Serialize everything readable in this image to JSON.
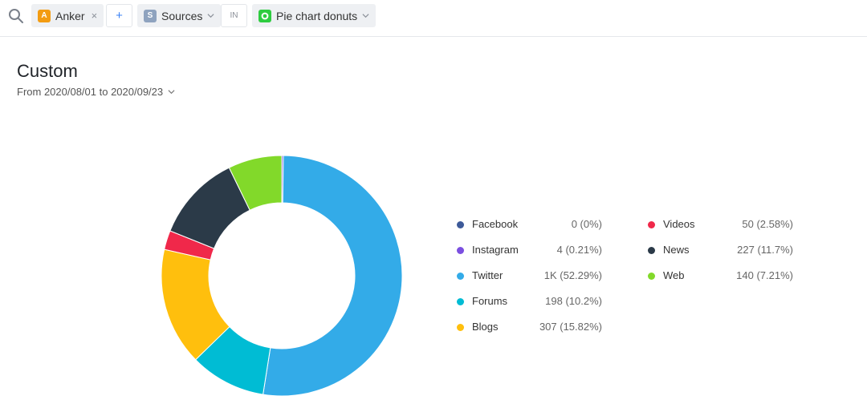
{
  "toolbar": {
    "search_icon": "search-icon",
    "brand_chip": {
      "badge": "A",
      "label": "Anker",
      "badge_color": "#f39c12"
    },
    "add_label": "+",
    "sources_chip": {
      "badge": "S",
      "label": "Sources",
      "badge_color": "#8fa3bf"
    },
    "operator_label": "IN",
    "type_chip": {
      "label": "Pie chart donuts",
      "badge_color": "#2ecc40"
    }
  },
  "page": {
    "title": "Custom",
    "date_range": "From 2020/08/01 to 2020/09/23"
  },
  "chart_data": {
    "type": "pie",
    "donut": true,
    "series": [
      {
        "name": "Facebook",
        "value": 0,
        "value_label": "0 (0%)",
        "percent": 0.0,
        "color": "#3d5a99"
      },
      {
        "name": "Instagram",
        "value": 4,
        "value_label": "4 (0.21%)",
        "percent": 0.21,
        "color": "#7b4fe0"
      },
      {
        "name": "Twitter",
        "value": 1000,
        "value_label": "1K (52.29%)",
        "percent": 52.29,
        "color": "#33abe8"
      },
      {
        "name": "Forums",
        "value": 198,
        "value_label": "198 (10.2%)",
        "percent": 10.2,
        "color": "#00bcd4"
      },
      {
        "name": "Blogs",
        "value": 307,
        "value_label": "307 (15.82%)",
        "percent": 15.82,
        "color": "#ffbf0d"
      },
      {
        "name": "Videos",
        "value": 50,
        "value_label": "50 (2.58%)",
        "percent": 2.58,
        "color": "#f0284a"
      },
      {
        "name": "News",
        "value": 227,
        "value_label": "227 (11.7%)",
        "percent": 11.7,
        "color": "#2b3a48"
      },
      {
        "name": "Web",
        "value": 140,
        "value_label": "140 (7.21%)",
        "percent": 7.21,
        "color": "#82d92a"
      }
    ],
    "legend": "right, two columns"
  }
}
